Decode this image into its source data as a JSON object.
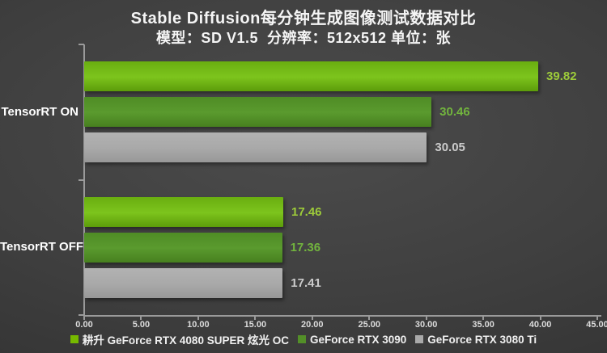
{
  "title": "Stable Diffusion每分钟生成图像测试数据对比",
  "subtitle": "模型：SD V1.5  分辨率：512x512 单位：张",
  "chart_data": {
    "type": "bar",
    "orientation": "horizontal",
    "title": "Stable Diffusion每分钟生成图像测试数据对比",
    "subtitle": "模型：SD V1.5  分辨率：512x512 单位：张",
    "categories": [
      "TensorRT ON",
      "TensorRT OFF"
    ],
    "series": [
      {
        "name": "耕升 GeForce RTX 4080 SUPER 炫光 OC",
        "values": [
          39.82,
          17.46
        ],
        "color": "#76b900",
        "gradient": [
          "#69ae10",
          "#7dc41d",
          "#5c9c0a"
        ],
        "label_color": "#9dcb3a"
      },
      {
        "name": "GeForce RTX 3090",
        "values": [
          30.46,
          17.36
        ],
        "color": "#538f28",
        "gradient": [
          "#4f8c25",
          "#5a9a2e",
          "#47801f"
        ],
        "label_color": "#72b43e"
      },
      {
        "name": "GeForce RTX 3080 Ti",
        "values": [
          30.05,
          17.41
        ],
        "color": "#a9a9a9",
        "gradient": [
          "#b2b2b2",
          "#a9a9a9",
          "#989898"
        ],
        "label_color": "#cbcbcb"
      }
    ],
    "xlim": [
      0,
      45
    ],
    "x_ticks": [
      "0.00",
      "5.00",
      "10.00",
      "15.00",
      "20.00",
      "25.00",
      "30.00",
      "35.00",
      "40.00",
      "45.00"
    ],
    "value_decimals": 2,
    "grid": false,
    "legend_position": "bottom",
    "background": "#3f3f3f",
    "axis_color": "#9a9a9a"
  }
}
